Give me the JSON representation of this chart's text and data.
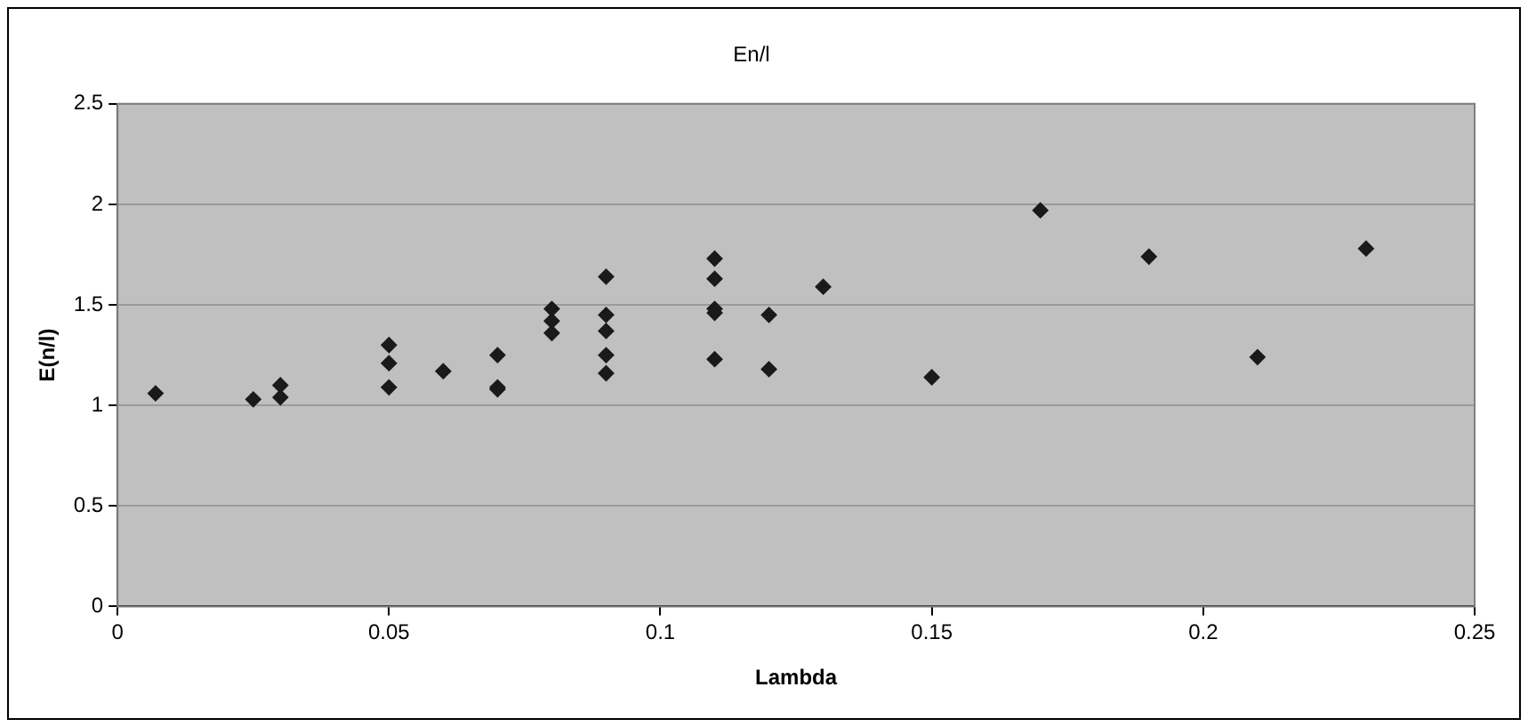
{
  "chart_data": {
    "type": "scatter",
    "title": "En/l",
    "xlabel": "Lambda",
    "ylabel": "E(n/l)",
    "x": [
      0.007,
      0.025,
      0.03,
      0.03,
      0.05,
      0.05,
      0.05,
      0.06,
      0.07,
      0.07,
      0.07,
      0.08,
      0.08,
      0.08,
      0.09,
      0.09,
      0.09,
      0.09,
      0.09,
      0.11,
      0.11,
      0.11,
      0.11,
      0.11,
      0.12,
      0.12,
      0.13,
      0.15,
      0.17,
      0.19,
      0.21,
      0.23
    ],
    "values": [
      1.06,
      1.03,
      1.1,
      1.04,
      1.3,
      1.21,
      1.09,
      1.17,
      1.25,
      1.09,
      1.08,
      1.48,
      1.42,
      1.36,
      1.64,
      1.45,
      1.37,
      1.25,
      1.16,
      1.73,
      1.63,
      1.48,
      1.46,
      1.23,
      1.45,
      1.18,
      1.59,
      1.14,
      1.97,
      1.74,
      1.24,
      1.78
    ],
    "color": "#1a1a1a",
    "marker": "diamond",
    "grid": "y",
    "legend": false,
    "xlim": [
      0,
      0.25
    ],
    "xticks": [
      0,
      0.05,
      0.1,
      0.15,
      0.2,
      0.25
    ],
    "ylim": [
      0,
      2.5
    ],
    "yticks": [
      0,
      0.5,
      1,
      1.5,
      2,
      2.5
    ]
  }
}
